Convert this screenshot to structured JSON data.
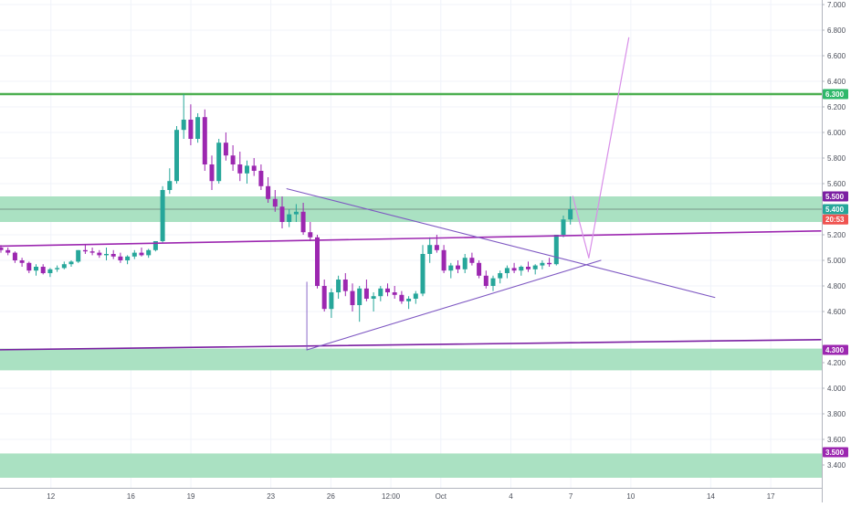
{
  "chart_data": {
    "type": "candlestick",
    "y_axis": {
      "range": [
        3.3,
        7.0
      ],
      "tick_labels": [
        "7.000",
        "6.800",
        "6.600",
        "6.400",
        "6.200",
        "6.000",
        "5.800",
        "5.600",
        "5.200",
        "5.000",
        "4.800",
        "4.600",
        "4.200",
        "4.000",
        "3.800",
        "3.600",
        "3.400"
      ],
      "tick_values": [
        7.0,
        6.8,
        6.6,
        6.4,
        6.2,
        6.0,
        5.8,
        5.6,
        5.2,
        5.0,
        4.8,
        4.6,
        4.2,
        4.0,
        3.8,
        3.6,
        3.4
      ]
    },
    "x_axis": {
      "tick_labels": [
        "12",
        "16",
        "19",
        "23",
        "26",
        "12:00",
        "Oct",
        "4",
        "7",
        "10",
        "14",
        "17"
      ],
      "tick_positions": [
        2.5,
        6.5,
        9.5,
        13.5,
        16.5,
        19.5,
        22,
        25.5,
        28.5,
        31.5,
        35.5,
        38.5
      ]
    },
    "price_badges": [
      {
        "label": "6.300",
        "value": 6.3,
        "color": "#2fb86a"
      },
      {
        "label": "5.500",
        "value": 5.5,
        "color": "#7b1fa2"
      },
      {
        "label": "5.400",
        "value": 5.4,
        "color": "#26a69a"
      },
      {
        "label": "20:53",
        "value": 5.32,
        "color": "#ef5350"
      },
      {
        "label": "4.300",
        "value": 4.3,
        "color": "#9c27b0"
      },
      {
        "label": "3.500",
        "value": 3.5,
        "color": "#9c27b0"
      }
    ],
    "horizontal_lines": [
      {
        "value": 6.3,
        "color": "#4caf50"
      }
    ],
    "zones": [
      {
        "from": 5.3,
        "to": 5.5,
        "color": "#a5dfbf"
      },
      {
        "from": 4.14,
        "to": 4.31,
        "color": "#a5dfbf"
      },
      {
        "from": 3.3,
        "to": 3.49,
        "color": "#a5dfbf"
      }
    ],
    "trendlines": [
      {
        "from": [
          -0.5,
          5.11
        ],
        "to": [
          41,
          5.23
        ],
        "color": "#9c27b0",
        "width": 1.6
      },
      {
        "from": [
          -0.5,
          4.3
        ],
        "to": [
          41,
          4.38
        ],
        "color": "#7b1fa2",
        "width": 1.6
      },
      {
        "from": [
          14.3,
          5.56
        ],
        "to": [
          35.7,
          4.71
        ],
        "color": "#7e57c2",
        "width": 1.1
      },
      {
        "from": [
          15.3,
          4.3
        ],
        "to": [
          30.0,
          5.0
        ],
        "color": "#7e57c2",
        "width": 1.1
      },
      {
        "from": [
          15.3,
          4.3
        ],
        "to": [
          15.3,
          4.83
        ],
        "color": "#7e57c2",
        "width": 0.9
      },
      {
        "from": [
          28.6,
          5.5
        ],
        "to": [
          29.4,
          5.02
        ],
        "color": "#d88ee8",
        "width": 1.2
      },
      {
        "from": [
          29.4,
          5.02
        ],
        "to": [
          31.4,
          6.74
        ],
        "color": "#d88ee8",
        "width": 1.2
      }
    ],
    "candles": [
      [
        5.1,
        5.12,
        5.06,
        5.08
      ],
      [
        5.08,
        5.1,
        5.04,
        5.06
      ],
      [
        5.06,
        5.07,
        4.98,
        5.0
      ],
      [
        5.0,
        5.02,
        4.95,
        4.98
      ],
      [
        4.98,
        4.99,
        4.9,
        4.92
      ],
      [
        4.92,
        4.97,
        4.88,
        4.95
      ],
      [
        4.95,
        4.97,
        4.89,
        4.9
      ],
      [
        4.9,
        4.94,
        4.87,
        4.93
      ],
      [
        4.93,
        4.96,
        4.91,
        4.94
      ],
      [
        4.94,
        4.99,
        4.93,
        4.97
      ],
      [
        4.97,
        5.0,
        4.95,
        4.99
      ],
      [
        4.99,
        5.08,
        4.98,
        5.08
      ],
      [
        5.08,
        5.12,
        5.05,
        5.07
      ],
      [
        5.07,
        5.1,
        5.04,
        5.06
      ],
      [
        5.06,
        5.08,
        5.02,
        5.04
      ],
      [
        5.04,
        5.1,
        5.0,
        5.05
      ],
      [
        5.05,
        5.08,
        5.01,
        5.03
      ],
      [
        5.03,
        5.06,
        4.98,
        5.0
      ],
      [
        5.0,
        5.04,
        4.97,
        5.03
      ],
      [
        5.03,
        5.08,
        5.01,
        5.06
      ],
      [
        5.06,
        5.1,
        5.03,
        5.04
      ],
      [
        5.04,
        5.09,
        5.02,
        5.08
      ],
      [
        5.08,
        5.15,
        5.07,
        5.15
      ],
      [
        5.15,
        5.58,
        5.14,
        5.55
      ],
      [
        5.55,
        5.72,
        5.52,
        5.62
      ],
      [
        5.62,
        6.05,
        5.6,
        6.02
      ],
      [
        6.02,
        6.3,
        5.95,
        6.1
      ],
      [
        6.1,
        6.22,
        5.9,
        5.95
      ],
      [
        5.95,
        6.15,
        5.92,
        6.12
      ],
      [
        6.12,
        6.18,
        5.7,
        5.75
      ],
      [
        5.75,
        5.82,
        5.55,
        5.62
      ],
      [
        5.62,
        5.95,
        5.6,
        5.92
      ],
      [
        5.92,
        6.0,
        5.78,
        5.82
      ],
      [
        5.82,
        5.9,
        5.7,
        5.75
      ],
      [
        5.75,
        5.85,
        5.62,
        5.68
      ],
      [
        5.68,
        5.78,
        5.6,
        5.74
      ],
      [
        5.74,
        5.8,
        5.66,
        5.7
      ],
      [
        5.7,
        5.75,
        5.55,
        5.58
      ],
      [
        5.58,
        5.65,
        5.45,
        5.48
      ],
      [
        5.48,
        5.55,
        5.38,
        5.42
      ],
      [
        5.42,
        5.5,
        5.25,
        5.3
      ],
      [
        5.3,
        5.4,
        5.26,
        5.36
      ],
      [
        5.36,
        5.44,
        5.3,
        5.38
      ],
      [
        5.38,
        5.45,
        5.2,
        5.22
      ],
      [
        5.22,
        5.3,
        5.15,
        5.18
      ],
      [
        5.18,
        5.2,
        4.78,
        4.8
      ],
      [
        4.8,
        4.85,
        4.6,
        4.62
      ],
      [
        4.62,
        4.78,
        4.55,
        4.75
      ],
      [
        4.75,
        4.88,
        4.7,
        4.85
      ],
      [
        4.85,
        4.9,
        4.72,
        4.76
      ],
      [
        4.76,
        4.82,
        4.6,
        4.65
      ],
      [
        4.65,
        4.8,
        4.52,
        4.78
      ],
      [
        4.78,
        4.85,
        4.68,
        4.7
      ],
      [
        4.7,
        4.75,
        4.6,
        4.72
      ],
      [
        4.72,
        4.8,
        4.68,
        4.78
      ],
      [
        4.78,
        4.82,
        4.72,
        4.75
      ],
      [
        4.75,
        4.8,
        4.7,
        4.73
      ],
      [
        4.73,
        4.76,
        4.66,
        4.68
      ],
      [
        4.68,
        4.72,
        4.62,
        4.7
      ],
      [
        4.7,
        4.76,
        4.66,
        4.74
      ],
      [
        4.74,
        5.12,
        4.72,
        5.05
      ],
      [
        5.05,
        5.18,
        4.98,
        5.12
      ],
      [
        5.12,
        5.2,
        5.06,
        5.08
      ],
      [
        5.08,
        5.12,
        4.9,
        4.92
      ],
      [
        4.92,
        4.98,
        4.86,
        4.96
      ],
      [
        4.96,
        5.0,
        4.9,
        4.93
      ],
      [
        4.93,
        5.05,
        4.9,
        5.02
      ],
      [
        5.02,
        5.06,
        4.96,
        4.98
      ],
      [
        4.98,
        5.0,
        4.86,
        4.88
      ],
      [
        4.88,
        4.92,
        4.78,
        4.8
      ],
      [
        4.8,
        4.88,
        4.76,
        4.86
      ],
      [
        4.86,
        4.92,
        4.82,
        4.9
      ],
      [
        4.9,
        4.96,
        4.86,
        4.94
      ],
      [
        4.94,
        4.98,
        4.9,
        4.92
      ],
      [
        4.92,
        4.96,
        4.88,
        4.95
      ],
      [
        4.95,
        4.99,
        4.91,
        4.93
      ],
      [
        4.93,
        4.97,
        4.89,
        4.96
      ],
      [
        4.96,
        5.0,
        4.93,
        4.98
      ],
      [
        4.98,
        5.02,
        4.95,
        4.97
      ],
      [
        4.97,
        5.2,
        4.96,
        5.2
      ],
      [
        5.2,
        5.35,
        5.18,
        5.32
      ],
      [
        5.32,
        5.5,
        5.28,
        5.4
      ]
    ]
  }
}
